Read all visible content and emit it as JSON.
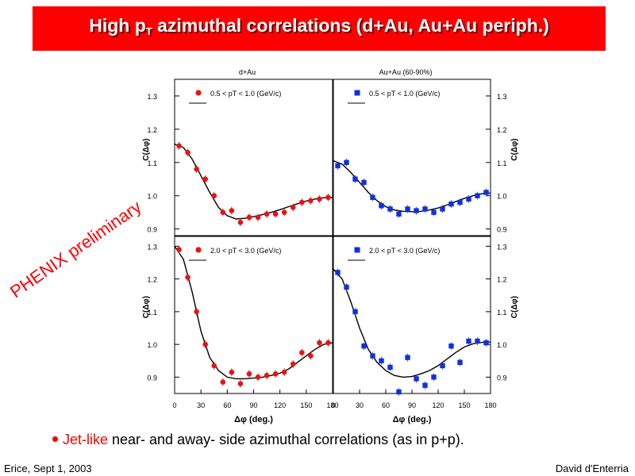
{
  "slide": {
    "title_main": "High p",
    "title_sub": "T",
    "title_rest": " azimuthal correlations (d+Au, Au+Au periph.)",
    "stamp": "PHENIX preliminary",
    "bullet_highlight": "Jet-like",
    "bullet_rest": " near- and away- side azimuthal correlations (as in p+p).",
    "footer_left": "Erice, Sept 1, 2003",
    "footer_right": "David d'Enterria",
    "colors": {
      "title_bar": "#ff0000",
      "dau_marker": "#ee1111",
      "auau_marker": "#1030e0",
      "accent": "#ff0000"
    }
  },
  "chart_data": [
    {
      "type": "scatter",
      "marker": "circle",
      "color": "#ee1111",
      "header": "d+Au",
      "legend": "0.5 < pT < 1.0 (GeV/c)",
      "ylabel": "C(Δφ)",
      "xlim": [
        0,
        180
      ],
      "ylim": [
        0.88,
        1.35
      ],
      "yticks": [
        0.9,
        1.0,
        1.1,
        1.2,
        1.3
      ],
      "xticks": [],
      "points": [
        [
          5,
          1.15
        ],
        [
          15,
          1.13
        ],
        [
          25,
          1.08
        ],
        [
          35,
          1.05
        ],
        [
          45,
          1.0
        ],
        [
          55,
          0.95
        ],
        [
          65,
          0.955
        ],
        [
          75,
          0.92
        ],
        [
          85,
          0.935
        ],
        [
          95,
          0.935
        ],
        [
          105,
          0.945
        ],
        [
          115,
          0.945
        ],
        [
          125,
          0.95
        ],
        [
          135,
          0.965
        ],
        [
          145,
          0.98
        ],
        [
          155,
          0.985
        ],
        [
          165,
          0.99
        ],
        [
          175,
          0.995
        ]
      ],
      "fit": [
        [
          0,
          1.155
        ],
        [
          10,
          1.145
        ],
        [
          20,
          1.11
        ],
        [
          30,
          1.06
        ],
        [
          40,
          1.01
        ],
        [
          50,
          0.965
        ],
        [
          60,
          0.94
        ],
        [
          70,
          0.93
        ],
        [
          80,
          0.932
        ],
        [
          90,
          0.937
        ],
        [
          100,
          0.943
        ],
        [
          110,
          0.95
        ],
        [
          120,
          0.958
        ],
        [
          130,
          0.967
        ],
        [
          140,
          0.976
        ],
        [
          150,
          0.984
        ],
        [
          160,
          0.99
        ],
        [
          170,
          0.994
        ],
        [
          180,
          0.995
        ]
      ]
    },
    {
      "type": "scatter",
      "marker": "square",
      "color": "#1030e0",
      "header": "Au+Au (60-90%)",
      "legend": "0.5 < pT < 1.0 (GeV/c)",
      "ylabel": "C(Δφ)",
      "xlim": [
        0,
        180
      ],
      "ylim": [
        0.88,
        1.35
      ],
      "yticks": [
        0.9,
        1.0,
        1.1,
        1.2,
        1.3
      ],
      "xticks": [],
      "points": [
        [
          5,
          1.09
        ],
        [
          15,
          1.1
        ],
        [
          25,
          1.05
        ],
        [
          35,
          1.04
        ],
        [
          45,
          0.995
        ],
        [
          55,
          0.97
        ],
        [
          65,
          0.96
        ],
        [
          75,
          0.945
        ],
        [
          85,
          0.96
        ],
        [
          95,
          0.955
        ],
        [
          105,
          0.96
        ],
        [
          115,
          0.95
        ],
        [
          125,
          0.96
        ],
        [
          135,
          0.975
        ],
        [
          145,
          0.98
        ],
        [
          155,
          0.99
        ],
        [
          165,
          1.0
        ],
        [
          175,
          1.01
        ]
      ],
      "fit": [
        [
          0,
          1.105
        ],
        [
          10,
          1.095
        ],
        [
          20,
          1.07
        ],
        [
          30,
          1.04
        ],
        [
          40,
          1.01
        ],
        [
          50,
          0.985
        ],
        [
          60,
          0.967
        ],
        [
          70,
          0.957
        ],
        [
          80,
          0.953
        ],
        [
          90,
          0.952
        ],
        [
          100,
          0.953
        ],
        [
          110,
          0.957
        ],
        [
          120,
          0.963
        ],
        [
          130,
          0.972
        ],
        [
          140,
          0.982
        ],
        [
          150,
          0.992
        ],
        [
          160,
          1.0
        ],
        [
          170,
          1.006
        ],
        [
          180,
          1.008
        ]
      ]
    },
    {
      "type": "scatter",
      "marker": "circle",
      "color": "#ee1111",
      "legend": "2.0 < pT < 3.0 (GeV/c)",
      "ylabel": "C(Δφ)",
      "xlabel": "Δφ (deg.)",
      "xlim": [
        0,
        180
      ],
      "ylim": [
        0.85,
        1.33
      ],
      "yticks": [
        0.9,
        1.0,
        1.1,
        1.2,
        1.3
      ],
      "xticks": [
        0,
        30,
        60,
        90,
        120,
        150,
        180
      ],
      "points": [
        [
          5,
          1.29
        ],
        [
          15,
          1.205
        ],
        [
          25,
          1.1
        ],
        [
          35,
          1.0
        ],
        [
          45,
          0.935
        ],
        [
          55,
          0.885
        ],
        [
          65,
          0.915
        ],
        [
          75,
          0.88
        ],
        [
          85,
          0.91
        ],
        [
          95,
          0.9
        ],
        [
          105,
          0.905
        ],
        [
          115,
          0.91
        ],
        [
          125,
          0.915
        ],
        [
          135,
          0.94
        ],
        [
          145,
          0.975
        ],
        [
          155,
          0.965
        ],
        [
          165,
          1.005
        ],
        [
          175,
          1.005
        ]
      ],
      "fit": [
        [
          0,
          1.3
        ],
        [
          10,
          1.26
        ],
        [
          20,
          1.16
        ],
        [
          30,
          1.04
        ],
        [
          40,
          0.96
        ],
        [
          50,
          0.92
        ],
        [
          60,
          0.9
        ],
        [
          70,
          0.895
        ],
        [
          80,
          0.895
        ],
        [
          90,
          0.897
        ],
        [
          100,
          0.9
        ],
        [
          110,
          0.905
        ],
        [
          120,
          0.912
        ],
        [
          130,
          0.925
        ],
        [
          140,
          0.945
        ],
        [
          150,
          0.965
        ],
        [
          160,
          0.985
        ],
        [
          170,
          1.0
        ],
        [
          180,
          1.005
        ]
      ]
    },
    {
      "type": "scatter",
      "marker": "square",
      "color": "#1030e0",
      "legend": "2.0 < pT < 3.0 (GeV/c)",
      "ylabel": "C(Δφ)",
      "xlabel": "Δφ (deg.)",
      "xlim": [
        0,
        180
      ],
      "ylim": [
        0.85,
        1.33
      ],
      "yticks": [
        0.9,
        1.0,
        1.1,
        1.2,
        1.3
      ],
      "xticks": [
        0,
        30,
        60,
        90,
        120,
        150,
        180
      ],
      "points": [
        [
          5,
          1.22
        ],
        [
          15,
          1.175
        ],
        [
          25,
          1.1
        ],
        [
          35,
          0.995
        ],
        [
          45,
          0.965
        ],
        [
          55,
          0.95
        ],
        [
          65,
          0.93
        ],
        [
          75,
          0.855
        ],
        [
          85,
          0.96
        ],
        [
          95,
          0.895
        ],
        [
          105,
          0.875
        ],
        [
          115,
          0.9
        ],
        [
          125,
          0.935
        ],
        [
          135,
          0.995
        ],
        [
          145,
          0.945
        ],
        [
          155,
          1.01
        ],
        [
          165,
          1.01
        ],
        [
          175,
          1.005
        ]
      ],
      "fit": [
        [
          0,
          1.23
        ],
        [
          10,
          1.2
        ],
        [
          20,
          1.13
        ],
        [
          30,
          1.05
        ],
        [
          40,
          0.985
        ],
        [
          50,
          0.945
        ],
        [
          60,
          0.92
        ],
        [
          70,
          0.905
        ],
        [
          80,
          0.9
        ],
        [
          90,
          0.902
        ],
        [
          100,
          0.91
        ],
        [
          110,
          0.92
        ],
        [
          120,
          0.935
        ],
        [
          130,
          0.955
        ],
        [
          140,
          0.975
        ],
        [
          150,
          0.992
        ],
        [
          160,
          1.002
        ],
        [
          170,
          1.006
        ],
        [
          180,
          1.007
        ]
      ]
    }
  ]
}
